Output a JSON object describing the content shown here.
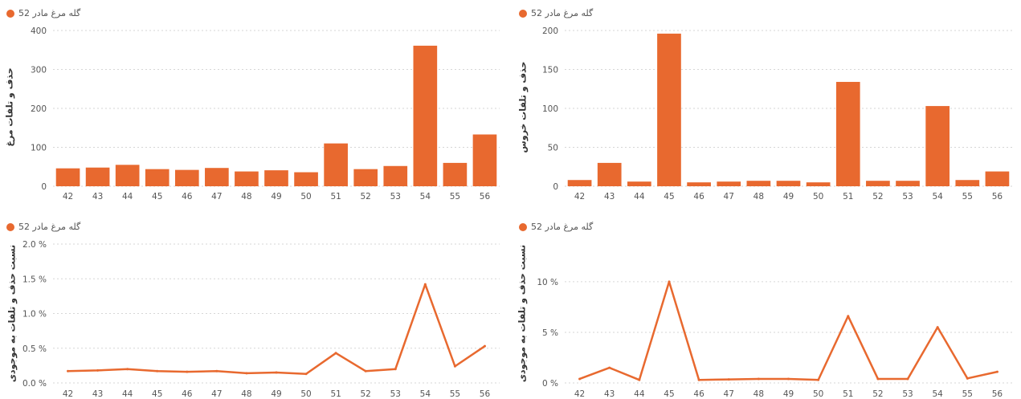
{
  "series_color": "#E8692F",
  "chart_data": [
    {
      "id": "tl",
      "type": "bar",
      "legend": "گله مرغ مادر 52",
      "ylabel": "حذف و تلفات مرغ",
      "categories": [
        "42",
        "43",
        "44",
        "45",
        "46",
        "47",
        "48",
        "49",
        "50",
        "51",
        "52",
        "53",
        "54",
        "55",
        "56"
      ],
      "values": [
        46,
        48,
        55,
        44,
        42,
        47,
        38,
        41,
        36,
        110,
        44,
        52,
        361,
        60,
        133
      ],
      "ylim": [
        0,
        400
      ],
      "yticks": [
        0,
        100,
        200,
        300,
        400
      ],
      "tick_labels": [
        "0",
        "100",
        "200",
        "300",
        "400"
      ],
      "grid": true
    },
    {
      "id": "tr",
      "type": "bar",
      "legend": "گله مرغ مادر 52",
      "ylabel": "حذف و تلفات خروس",
      "categories": [
        "42",
        "43",
        "44",
        "45",
        "46",
        "47",
        "48",
        "49",
        "50",
        "51",
        "52",
        "53",
        "54",
        "55",
        "56"
      ],
      "values": [
        8,
        30,
        6,
        196,
        5,
        6,
        7,
        7,
        5,
        134,
        7,
        7,
        103,
        8,
        19
      ],
      "ylim": [
        0,
        200
      ],
      "yticks": [
        0,
        50,
        100,
        150,
        200
      ],
      "tick_labels": [
        "0",
        "50",
        "100",
        "150",
        "200"
      ],
      "grid": true
    },
    {
      "id": "bl",
      "type": "line",
      "legend": "گله مرغ مادر 52",
      "ylabel": "نسبت حذف و تلفات به موجودی",
      "categories": [
        "42",
        "43",
        "44",
        "45",
        "46",
        "47",
        "48",
        "49",
        "50",
        "51",
        "52",
        "53",
        "54",
        "55",
        "56"
      ],
      "values": [
        0.17,
        0.18,
        0.2,
        0.17,
        0.16,
        0.17,
        0.14,
        0.15,
        0.13,
        0.43,
        0.17,
        0.2,
        1.42,
        0.24,
        0.53
      ],
      "ylim": [
        0,
        2.0
      ],
      "yticks": [
        0,
        0.5,
        1.0,
        1.5,
        2.0
      ],
      "tick_labels": [
        "0.0 %",
        "0.5 %",
        "1.0 %",
        "1.5 %",
        "2.0 %"
      ],
      "grid": true
    },
    {
      "id": "br",
      "type": "line",
      "legend": "گله مرغ مادر 52",
      "ylabel": "نسبت حذف و تلفات به موجودی",
      "categories": [
        "42",
        "43",
        "44",
        "45",
        "46",
        "47",
        "48",
        "49",
        "50",
        "51",
        "52",
        "53",
        "54",
        "55",
        "56"
      ],
      "values": [
        0.4,
        1.5,
        0.3,
        10.0,
        0.3,
        0.35,
        0.4,
        0.4,
        0.3,
        6.6,
        0.4,
        0.4,
        5.5,
        0.45,
        1.1
      ],
      "ylim": [
        0,
        11.5
      ],
      "yticks": [
        0,
        5,
        10
      ],
      "tick_labels": [
        "0 %",
        "5 %",
        "10 %"
      ],
      "grid": true
    }
  ]
}
